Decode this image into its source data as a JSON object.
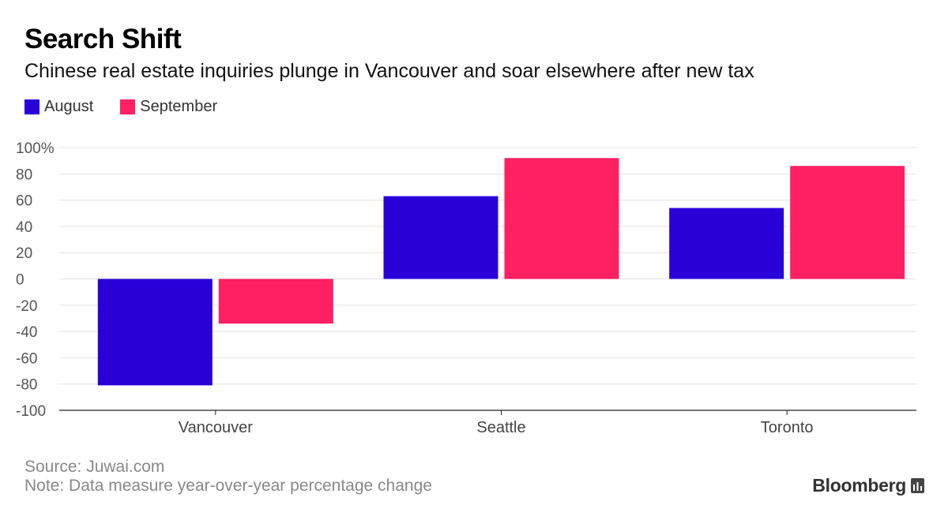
{
  "header": {
    "title": "Search Shift",
    "subtitle": "Chinese real estate inquiries plunge in Vancouver and soar elsewhere after new tax"
  },
  "legend": {
    "items": [
      {
        "label": "August",
        "color": "#2a00d9"
      },
      {
        "label": "September",
        "color": "#ff1f63"
      }
    ]
  },
  "chart_data": {
    "type": "bar",
    "categories": [
      "Vancouver",
      "Seattle",
      "Toronto"
    ],
    "series": [
      {
        "name": "August",
        "color": "#2a00d9",
        "values": [
          -81,
          63,
          54
        ]
      },
      {
        "name": "September",
        "color": "#ff1f63",
        "values": [
          -34,
          92,
          86
        ]
      }
    ],
    "ylim": [
      -100,
      100
    ],
    "yticks": [
      100,
      80,
      60,
      40,
      20,
      0,
      -20,
      -40,
      -60,
      -80,
      -100
    ],
    "ytick_labels": [
      "100%",
      "80",
      "60",
      "40",
      "20",
      "0",
      "-20",
      "-40",
      "-60",
      "-80",
      "-100"
    ],
    "grid": true,
    "legend_position": "top-left",
    "title": "Search Shift",
    "subtitle": "Chinese real estate inquiries plunge in Vancouver and soar elsewhere after new tax"
  },
  "footer": {
    "source": "Source: Juwai.com",
    "note": "Note: Data measure year-over-year percentage change",
    "brand": "Bloomberg",
    "brand_icon": "bloomberg-chart-icon"
  }
}
